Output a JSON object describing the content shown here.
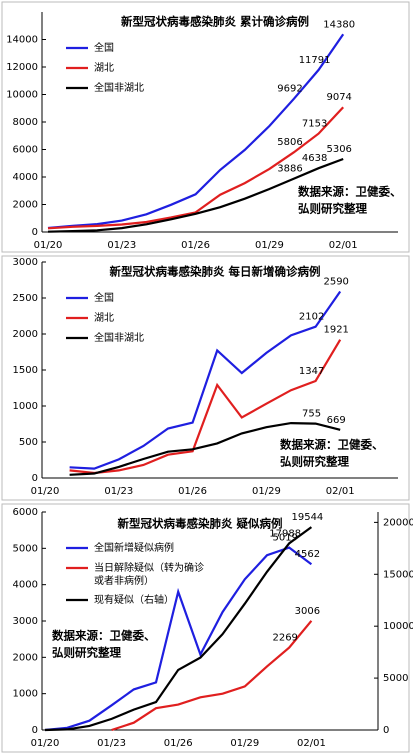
{
  "chart_data": [
    {
      "type": "line",
      "title": "新型冠状病毒感染肺炎  累计确诊病例",
      "categories": [
        "01/20",
        null,
        null,
        "01/23",
        null,
        null,
        "01/26",
        null,
        null,
        "01/29",
        null,
        null,
        "02/01"
      ],
      "series": [
        {
          "name": "全国",
          "color": "#1f1fe0",
          "values": [
            291,
            440,
            571,
            830,
            1287,
            1975,
            2744,
            4515,
            5974,
            7711,
            9692,
            11791,
            14380
          ],
          "value_labels": [
            null,
            null,
            null,
            null,
            null,
            null,
            null,
            null,
            null,
            null,
            "9692",
            "11791",
            "14380"
          ]
        },
        {
          "name": "湖北",
          "color": "#e01f1f",
          "values": [
            270,
            375,
            444,
            549,
            729,
            1052,
            1423,
            2714,
            3554,
            4586,
            5806,
            7153,
            9074
          ],
          "value_labels": [
            null,
            null,
            null,
            null,
            null,
            null,
            null,
            null,
            null,
            null,
            "5806",
            "7153",
            "9074"
          ]
        },
        {
          "name": "全国非湖北",
          "color": "#000000",
          "values": [
            21,
            65,
            127,
            281,
            558,
            923,
            1321,
            1801,
            2420,
            3125,
            3886,
            4638,
            5306
          ],
          "value_labels": [
            null,
            null,
            null,
            null,
            null,
            null,
            null,
            null,
            null,
            null,
            "3886",
            "4638",
            "5306"
          ]
        }
      ],
      "ylim": [
        0,
        16000
      ],
      "yticks": [
        0,
        2000,
        4000,
        6000,
        8000,
        10000,
        12000,
        14000
      ],
      "legend": "upper left",
      "annotation": [
        "数据来源：卫健委、",
        "弘则研究整理"
      ]
    },
    {
      "type": "line",
      "title": "新型冠状病毒感染肺炎  每日新增确诊病例",
      "categories": [
        "01/20",
        null,
        null,
        "01/23",
        null,
        null,
        "01/26",
        null,
        null,
        "01/29",
        null,
        null,
        "02/01"
      ],
      "series": [
        {
          "name": "全国",
          "color": "#1f1fe0",
          "values": [
            null,
            149,
            131,
            259,
            444,
            688,
            769,
            1771,
            1459,
            1737,
            1982,
            2102,
            2590
          ],
          "value_labels": [
            null,
            null,
            null,
            null,
            null,
            null,
            null,
            null,
            null,
            null,
            null,
            "2102",
            "2590"
          ]
        },
        {
          "name": "湖北",
          "color": "#e01f1f",
          "values": [
            null,
            105,
            69,
            105,
            180,
            323,
            371,
            1291,
            840,
            1032,
            1220,
            1347,
            1921
          ],
          "value_labels": [
            null,
            null,
            null,
            null,
            null,
            null,
            null,
            null,
            null,
            null,
            null,
            "1347",
            "1921"
          ]
        },
        {
          "name": "全国非湖北",
          "color": "#000000",
          "values": [
            null,
            44,
            62,
            154,
            264,
            365,
            398,
            480,
            619,
            705,
            762,
            755,
            669
          ],
          "value_labels": [
            null,
            null,
            null,
            null,
            null,
            null,
            null,
            null,
            null,
            null,
            null,
            "755",
            "669"
          ]
        }
      ],
      "ylim": [
        0,
        3000
      ],
      "yticks": [
        0,
        500,
        1000,
        1500,
        2000,
        2500,
        3000
      ],
      "legend": "upper left",
      "annotation": [
        "数据来源：卫健委、",
        "弘则研究整理"
      ]
    },
    {
      "type": "line",
      "title": "新型冠状病毒感染肺炎  疑似病例",
      "categories": [
        "01/20",
        null,
        null,
        "01/23",
        null,
        null,
        "01/26",
        null,
        null,
        "01/29",
        null,
        null,
        "02/01"
      ],
      "series": [
        {
          "name": "全国新增疑似病例",
          "color": "#1f1fe0",
          "values": [
            0,
            60,
            257,
            680,
            1118,
            1309,
            3806,
            2077,
            3248,
            4148,
            4812,
            5019,
            4562
          ],
          "value_labels": [
            null,
            null,
            null,
            null,
            null,
            null,
            null,
            null,
            null,
            null,
            null,
            "5019",
            "4562"
          ]
        },
        {
          "name": "当日解除疑似（转为确诊或者非病例）",
          "color": "#e01f1f",
          "values": [
            null,
            null,
            null,
            0,
            200,
            600,
            700,
            900,
            1000,
            1200,
            1750,
            2269,
            3006
          ],
          "value_labels": [
            null,
            null,
            null,
            null,
            null,
            null,
            null,
            null,
            null,
            null,
            null,
            "2269",
            "3006"
          ]
        },
        {
          "name": "现有疑似（右轴）",
          "color": "#000000",
          "axis": "y2",
          "values": [
            0,
            54,
            393,
            1072,
            1965,
            2684,
            5794,
            6973,
            9239,
            12167,
            15238,
            17988,
            19544
          ],
          "value_labels": [
            null,
            null,
            null,
            null,
            null,
            null,
            null,
            null,
            null,
            null,
            null,
            "17988",
            "19544"
          ]
        }
      ],
      "ylim": [
        0,
        6000
      ],
      "yticks": [
        0,
        1000,
        2000,
        3000,
        4000,
        5000,
        6000
      ],
      "y2lim": [
        0,
        21000
      ],
      "y2ticks": [
        0,
        5000,
        10000,
        15000,
        20000
      ],
      "legend": "upper left",
      "annotation": [
        "数据来源：卫健委、",
        "弘则研究整理"
      ]
    }
  ]
}
